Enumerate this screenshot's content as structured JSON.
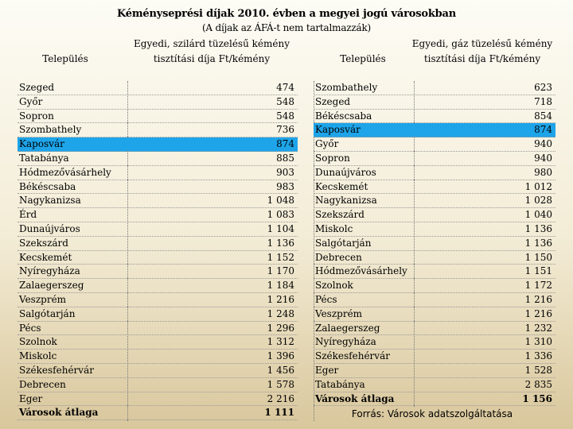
{
  "title": "Kéményseprési díjak 2010. évben a megyei jogú városokban",
  "subtitle": "(A díjak az ÁFÁ-t nem tartalmazzák)",
  "headers": {
    "left_city": "Település",
    "left_fee": "Egyedi, szilárd tüzelésű kémény tisztítási díja Ft/kémény",
    "right_city": "Település",
    "right_fee": "Egyedi, gáz tüzelésű kémény tisztítási díja Ft/kémény"
  },
  "left_table": [
    {
      "city": "Szeged",
      "fee": "474"
    },
    {
      "city": "Győr",
      "fee": "548"
    },
    {
      "city": "Sopron",
      "fee": "548"
    },
    {
      "city": "Szombathely",
      "fee": "736"
    },
    {
      "city": "Kaposvár",
      "fee": "874",
      "highlight": true
    },
    {
      "city": "Tatabánya",
      "fee": "885"
    },
    {
      "city": "Hódmezővásárhely",
      "fee": "903"
    },
    {
      "city": "Békéscsaba",
      "fee": "983"
    },
    {
      "city": "Nagykanizsa",
      "fee": "1 048"
    },
    {
      "city": "Érd",
      "fee": "1 083"
    },
    {
      "city": "Dunaújváros",
      "fee": "1 104"
    },
    {
      "city": "Szekszárd",
      "fee": "1 136"
    },
    {
      "city": "Kecskemét",
      "fee": "1 152"
    },
    {
      "city": "Nyíregyháza",
      "fee": "1 170"
    },
    {
      "city": "Zalaegerszeg",
      "fee": "1 184"
    },
    {
      "city": "Veszprém",
      "fee": "1 216"
    },
    {
      "city": "Salgótarján",
      "fee": "1 248"
    },
    {
      "city": "Pécs",
      "fee": "1 296"
    },
    {
      "city": "Szolnok",
      "fee": "1 312"
    },
    {
      "city": "Miskolc",
      "fee": "1 396"
    },
    {
      "city": "Székesfehérvár",
      "fee": "1 456"
    },
    {
      "city": "Debrecen",
      "fee": "1 578"
    },
    {
      "city": "Eger",
      "fee": "2 216"
    },
    {
      "city": "Városok átlaga",
      "fee": "1 111",
      "bold": true
    }
  ],
  "right_table": [
    {
      "city": "Szombathely",
      "fee": "623"
    },
    {
      "city": "Szeged",
      "fee": "718"
    },
    {
      "city": "Békéscsaba",
      "fee": "854"
    },
    {
      "city": "Kaposvár",
      "fee": "874",
      "highlight": true
    },
    {
      "city": "Győr",
      "fee": "940"
    },
    {
      "city": "Sopron",
      "fee": "940"
    },
    {
      "city": "Dunaújváros",
      "fee": "980"
    },
    {
      "city": "Kecskemét",
      "fee": "1 012"
    },
    {
      "city": "Nagykanizsa",
      "fee": "1 028"
    },
    {
      "city": "Szekszárd",
      "fee": "1 040"
    },
    {
      "city": "Miskolc",
      "fee": "1 136"
    },
    {
      "city": "Salgótarján",
      "fee": "1 136"
    },
    {
      "city": "Debrecen",
      "fee": "1 150"
    },
    {
      "city": "Hódmezővásárhely",
      "fee": "1 151"
    },
    {
      "city": "Szolnok",
      "fee": "1 172"
    },
    {
      "city": "Pécs",
      "fee": "1 216"
    },
    {
      "city": "Veszprém",
      "fee": "1 216"
    },
    {
      "city": "Zalaegerszeg",
      "fee": "1 232"
    },
    {
      "city": "Nyíregyháza",
      "fee": "1 310"
    },
    {
      "city": "Székesfehérvár",
      "fee": "1 336"
    },
    {
      "city": "Eger",
      "fee": "1 528"
    },
    {
      "city": "Tatabánya",
      "fee": "2 835"
    },
    {
      "city": "Városok átlaga",
      "fee": "1 156",
      "bold": true
    }
  ],
  "source": "Forrás: Városok adatszolgáltatása",
  "colors": {
    "highlight": "#1ea4e9"
  }
}
